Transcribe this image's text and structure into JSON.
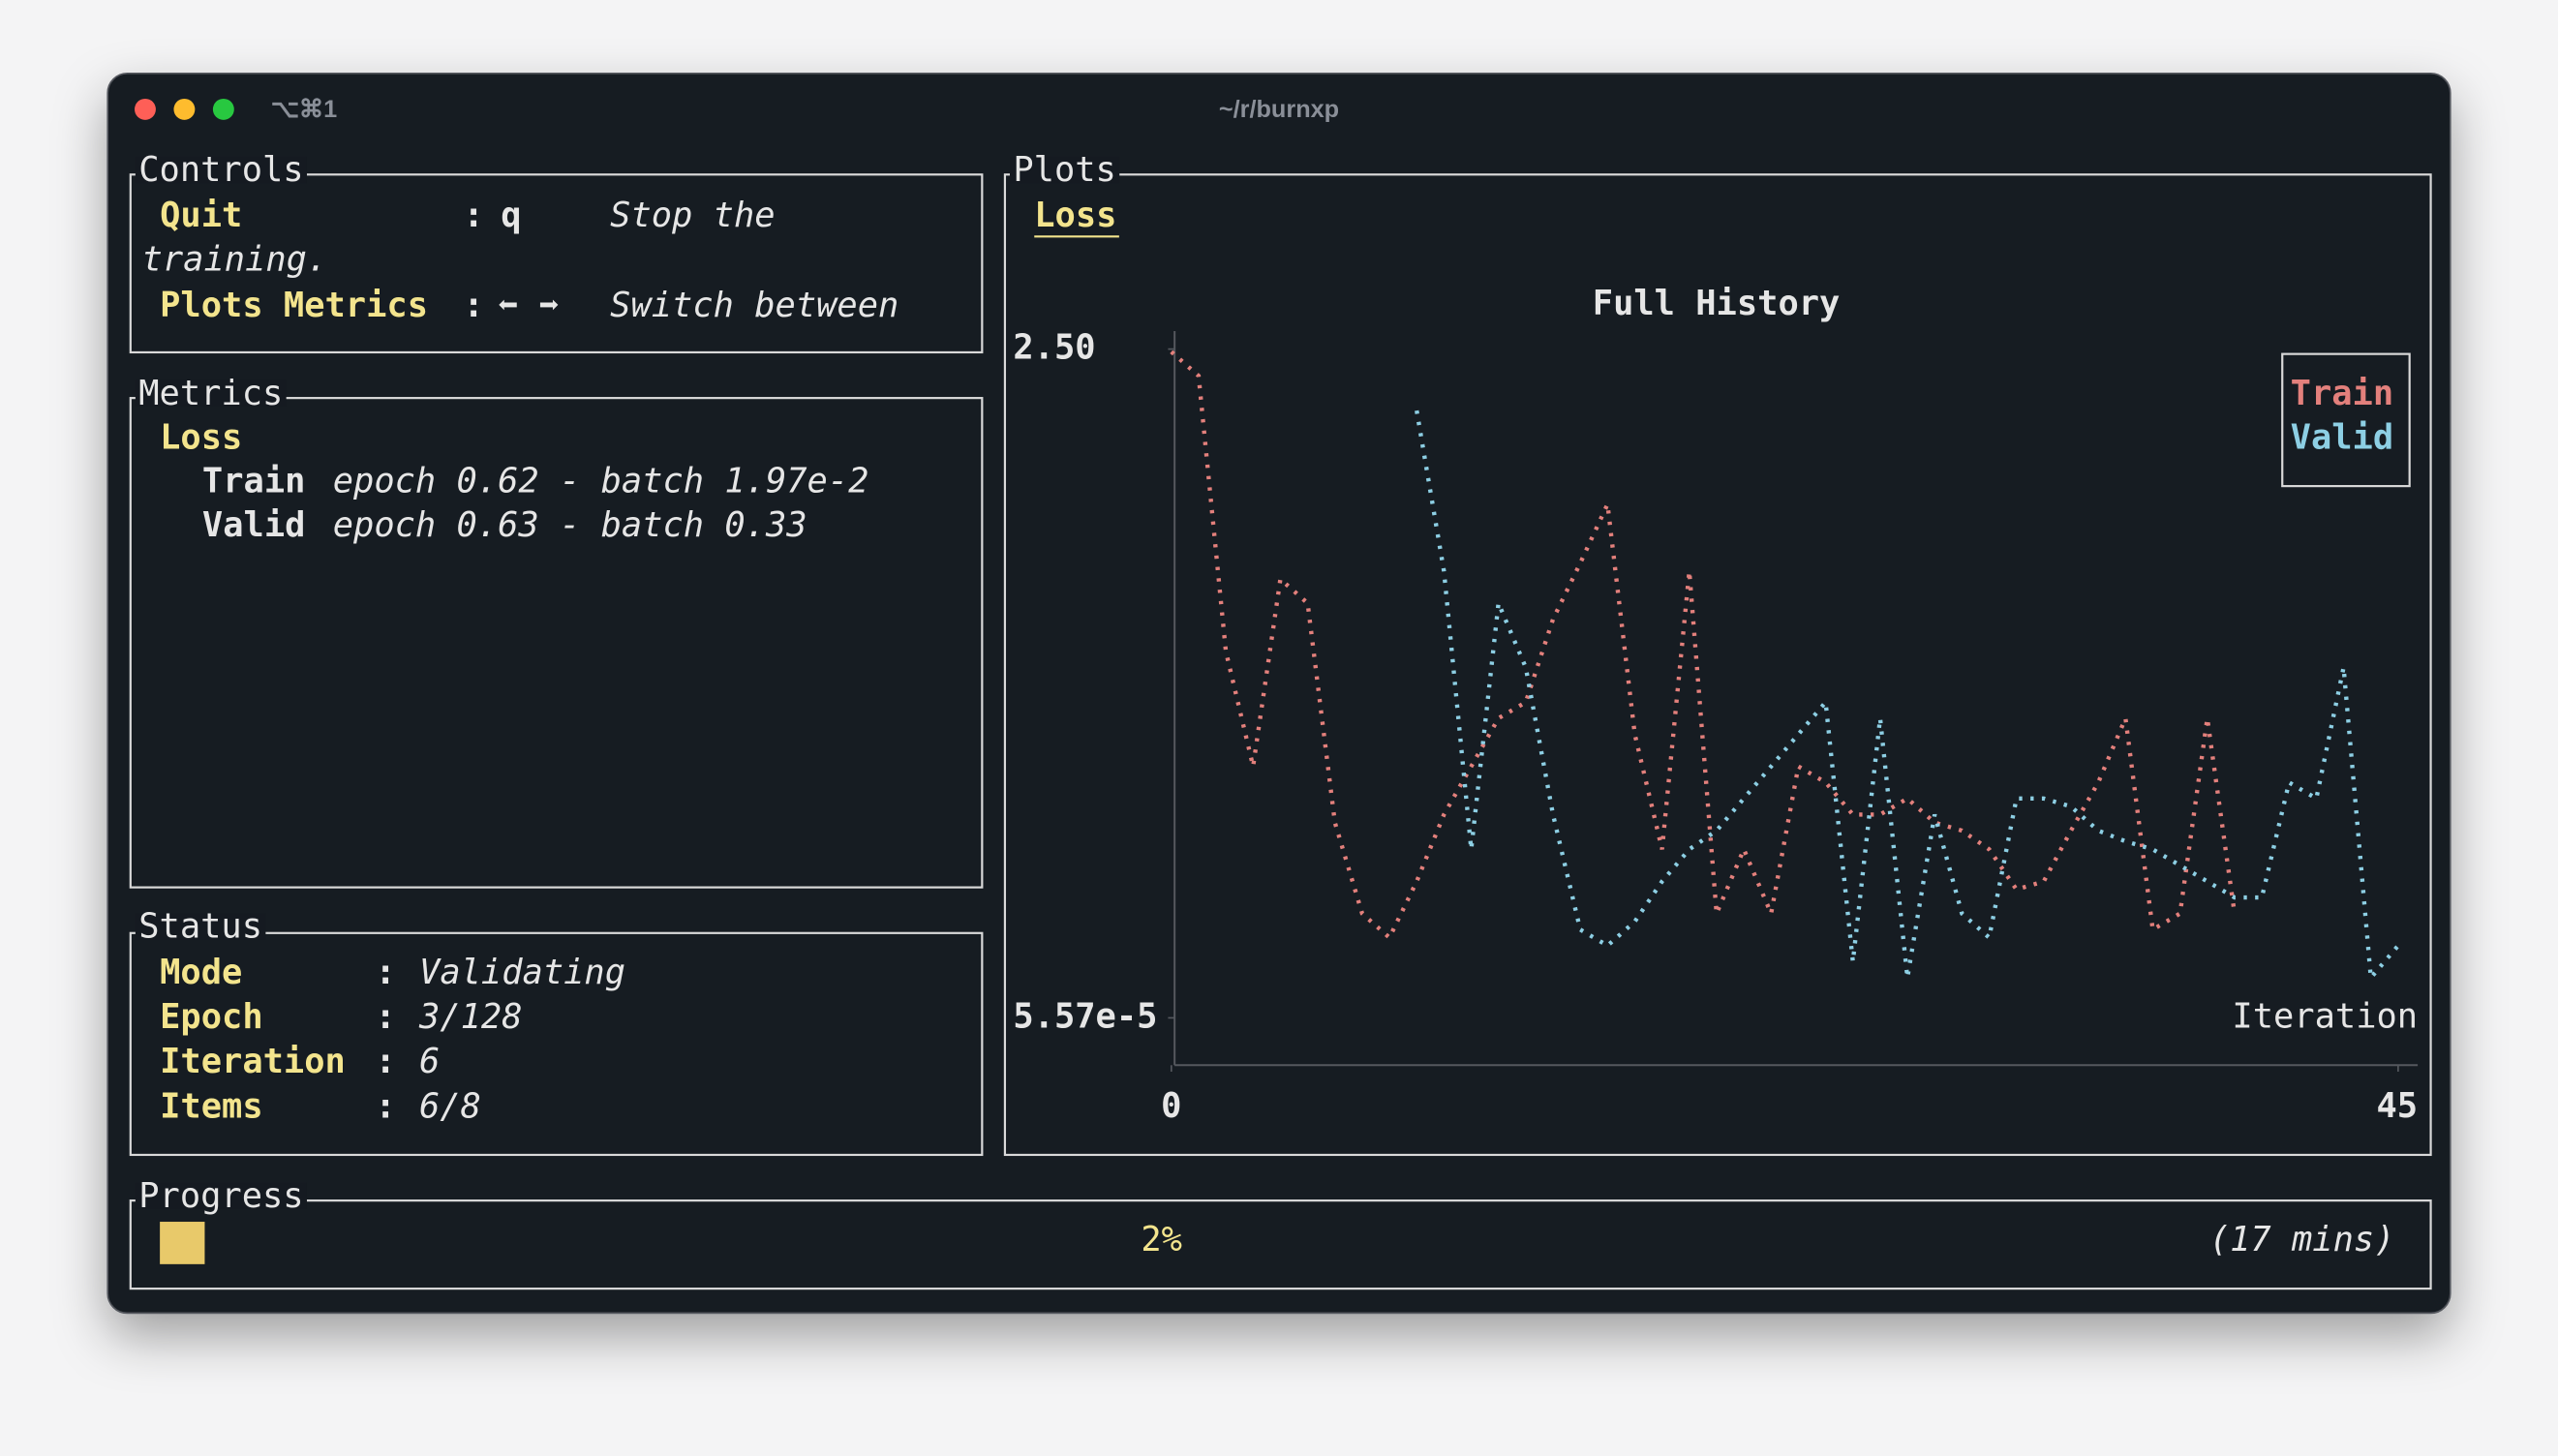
{
  "window": {
    "tab": "⌥⌘1",
    "title": "~/r/burnxp"
  },
  "controls": {
    "title": "Controls",
    "separator": ":",
    "rows": [
      {
        "name": "Quit",
        "key": "q",
        "description": [
          "Stop the",
          "training."
        ]
      },
      {
        "name": "Plots Metrics",
        "key": "⬅ ➡",
        "description": [
          "Switch between"
        ]
      }
    ]
  },
  "metrics": {
    "title": "Metrics",
    "group": "Loss",
    "rows": [
      {
        "name": "Train",
        "value": "epoch 0.62 - batch 1.97e-2"
      },
      {
        "name": "Valid",
        "value": "epoch 0.63 - batch 0.33"
      }
    ]
  },
  "status": {
    "title": "Status",
    "separator": ":",
    "rows": [
      {
        "name": "Mode",
        "value": "Validating"
      },
      {
        "name": "Epoch",
        "value": "3/128"
      },
      {
        "name": "Iteration",
        "value": "6"
      },
      {
        "name": "Items",
        "value": "6/8"
      }
    ]
  },
  "plots": {
    "title": "Plots",
    "tab": "Loss",
    "chart_data": {
      "type": "line",
      "title": "Full History",
      "x_label": "Iteration",
      "x": [
        0,
        1,
        2,
        3,
        4,
        5,
        6,
        7,
        8,
        9,
        10,
        11,
        12,
        13,
        14,
        15,
        16,
        17,
        18,
        19,
        20,
        21,
        22,
        23,
        24,
        25,
        26,
        27,
        28,
        29,
        30,
        31,
        32,
        33,
        34,
        35,
        36,
        37,
        38,
        39,
        40,
        41,
        42,
        43,
        44,
        45
      ],
      "xlim": [
        0,
        45
      ],
      "xticks": [
        0,
        45
      ],
      "ylim": [
        5.57e-05,
        2.5
      ],
      "yticks": [
        {
          "value": 2.5,
          "label": "2.50"
        },
        {
          "value": 5.57e-05,
          "label": "5.57e-5"
        }
      ],
      "legend": "upper right",
      "series": [
        {
          "name": "Train",
          "color": "#e3807c",
          "values": [
            2.49,
            2.4,
            1.37,
            0.94,
            1.64,
            1.55,
            0.73,
            0.39,
            0.3,
            0.51,
            0.76,
            0.94,
            1.12,
            1.18,
            1.49,
            1.7,
            1.92,
            1.06,
            0.63,
            1.67,
            0.39,
            0.63,
            0.39,
            0.94,
            0.88,
            0.76,
            0.76,
            0.82,
            0.73,
            0.7,
            0.63,
            0.48,
            0.51,
            0.7,
            0.88,
            1.12,
            0.33,
            0.39,
            1.12,
            0.39,
            null,
            null,
            null,
            null,
            null,
            null
          ]
        },
        {
          "name": "Valid",
          "color": "#8dcfe4",
          "values": [
            null,
            null,
            null,
            null,
            null,
            null,
            null,
            null,
            null,
            2.27,
            1.67,
            0.63,
            1.55,
            1.31,
            0.76,
            0.33,
            0.27,
            0.36,
            0.51,
            0.63,
            0.7,
            0.82,
            0.94,
            1.06,
            1.18,
            0.21,
            1.12,
            0.15,
            0.76,
            0.39,
            0.3,
            0.82,
            0.82,
            0.79,
            0.7,
            0.66,
            0.63,
            0.57,
            0.51,
            0.45,
            0.45,
            0.88,
            0.82,
            1.31,
            0.15,
            0.27
          ]
        }
      ]
    }
  },
  "progress": {
    "title": "Progress",
    "value": 2,
    "label": "2%",
    "eta": "(17 mins)"
  }
}
